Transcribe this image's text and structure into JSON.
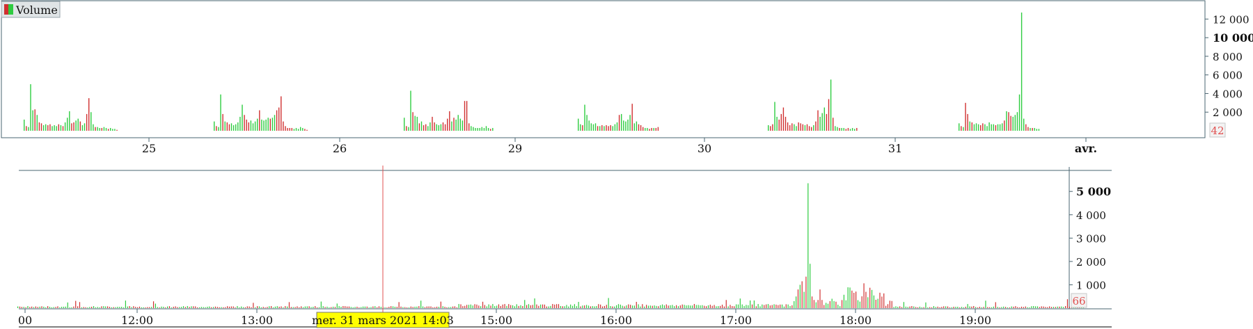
{
  "colors": {
    "up": "#2ecc40",
    "down": "#d03030",
    "axis": "#4a6470",
    "cursor": "#e05050",
    "badge_text": "#e05050",
    "badge_bg": "#f3f3f3",
    "highlight": "#ffff00"
  },
  "chart_data": [
    {
      "type": "bar",
      "legend": "Volume",
      "legend_icon": "up-down-bars-icon",
      "ylim": [
        0,
        13000
      ],
      "y_ticks": [
        {
          "value": 2000,
          "label": "2 000"
        },
        {
          "value": 4000,
          "label": "4 000"
        },
        {
          "value": 6000,
          "label": "6 000"
        },
        {
          "value": 8000,
          "label": "8 000"
        },
        {
          "value": 10000,
          "label": "10 000",
          "bold": true
        },
        {
          "value": 12000,
          "label": "12 000"
        }
      ],
      "last_value": "42",
      "x_ticks": [
        "25",
        "26",
        "29",
        "30",
        "31",
        "avr."
      ],
      "days": [
        {
          "label": "25",
          "up": [
            2200,
            2300,
            1800,
            900,
            800,
            700
          ],
          "down": [
            1200,
            5000,
            900,
            3500,
            2000,
            600
          ],
          "series": [
            1200,
            500,
            400,
            5000,
            2200,
            2300,
            1700,
            900,
            800,
            600,
            700,
            600,
            700,
            500,
            600,
            500,
            700,
            600,
            500,
            900,
            1400,
            2100,
            800,
            900,
            1100,
            1300,
            1000,
            600,
            800,
            1800,
            3500,
            2000,
            700,
            400,
            400,
            300,
            300,
            400,
            300,
            200,
            300,
            200,
            200,
            100
          ]
        },
        {
          "label": "26",
          "series": [
            1000,
            500,
            400,
            3900,
            1800,
            1000,
            900,
            700,
            800,
            600,
            700,
            900,
            1500,
            2800,
            1700,
            1200,
            900,
            1100,
            800,
            1000,
            1300,
            2200,
            1200,
            1100,
            1200,
            1400,
            1300,
            1400,
            1700,
            2200,
            2500,
            3700,
            1000,
            500,
            300,
            300,
            300,
            200,
            300,
            200,
            400,
            300,
            200,
            100
          ]
        },
        {
          "label": "29",
          "series": [
            1400,
            500,
            400,
            4300,
            2000,
            1600,
            1500,
            800,
            1000,
            600,
            700,
            500,
            900,
            1500,
            900,
            700,
            600,
            700,
            900,
            700,
            1300,
            2100,
            1000,
            1400,
            1200,
            1700,
            1300,
            1100,
            3200,
            3200,
            800,
            500,
            400,
            300,
            300,
            300,
            400,
            300,
            500,
            300,
            200,
            300
          ]
        },
        {
          "label": "30",
          "series": [
            1300,
            700,
            600,
            2800,
            1700,
            1100,
            800,
            700,
            800,
            500,
            500,
            600,
            500,
            600,
            500,
            600,
            500,
            700,
            900,
            1700,
            1800,
            1100,
            1000,
            1200,
            1700,
            2900,
            800,
            1000,
            700,
            600,
            400,
            300,
            300,
            200,
            300,
            300,
            300,
            400
          ]
        },
        {
          "label": "31",
          "series": [
            600,
            500,
            700,
            3100,
            1500,
            1200,
            1800,
            2500,
            1500,
            900,
            600,
            800,
            700,
            500,
            900,
            800,
            700,
            600,
            700,
            500,
            400,
            600,
            1000,
            2200,
            1500,
            1900,
            2500,
            1800,
            3400,
            5500,
            1400,
            500,
            400,
            300,
            300,
            300,
            200,
            300,
            200,
            300,
            200,
            300
          ]
        },
        {
          "label": "avr.",
          "series": [
            800,
            500,
            400,
            3000,
            1800,
            1000,
            900,
            700,
            800,
            700,
            600,
            800,
            700,
            500,
            900,
            700,
            700,
            600,
            700,
            700,
            800,
            1100,
            2100,
            2000,
            1600,
            1500,
            1700,
            2000,
            3900,
            12700,
            1300,
            700,
            400,
            300,
            300,
            300,
            200,
            200
          ]
        }
      ]
    },
    {
      "type": "bar",
      "ylim": [
        0,
        5900
      ],
      "y_ticks": [
        {
          "value": 1000,
          "label": "1 000"
        },
        {
          "value": 2000,
          "label": "2 000"
        },
        {
          "value": 3000,
          "label": "3 000"
        },
        {
          "value": 4000,
          "label": "4 000"
        },
        {
          "value": 5000,
          "label": "5 000",
          "bold": true
        }
      ],
      "last_value": "66",
      "x_ticks": [
        "00",
        "12:00",
        "13:00",
        "14:03",
        "15:00",
        "16:00",
        "17:00",
        "18:00",
        "19:00"
      ],
      "cursor_label": "mer. 31 mars 2021 14:03",
      "spike": [
        {
          "time": "17:29",
          "value": 300
        },
        {
          "time": "17:30",
          "value": 500
        },
        {
          "time": "17:31",
          "value": 800
        },
        {
          "time": "17:32",
          "value": 1000
        },
        {
          "time": "17:33",
          "value": 1150
        },
        {
          "time": "17:34",
          "value": 700
        },
        {
          "time": "17:35",
          "value": 1350
        },
        {
          "time": "17:36",
          "value": 5350
        },
        {
          "time": "17:37",
          "value": 1900
        },
        {
          "time": "17:38",
          "value": 500
        },
        {
          "time": "17:39",
          "value": 350
        },
        {
          "time": "17:40",
          "value": 250
        },
        {
          "time": "17:41",
          "value": 350
        },
        {
          "time": "17:42",
          "value": 800
        }
      ]
    }
  ]
}
